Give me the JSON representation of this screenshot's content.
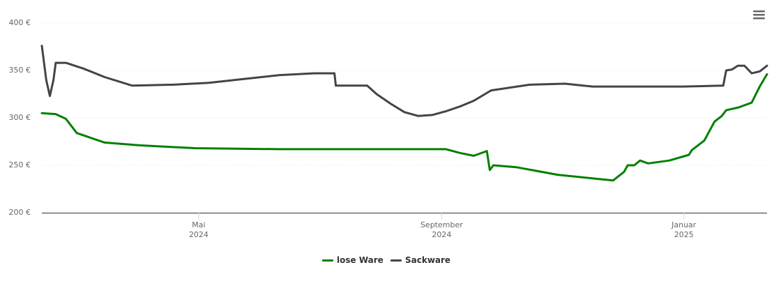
{
  "chart_data": {
    "type": "line",
    "series": [
      {
        "name": "lose Ware",
        "color": "#008000",
        "x": [
          2024.12,
          2024.139,
          2024.153,
          2024.168,
          2024.206,
          2024.254,
          2024.33,
          2024.445,
          2024.674,
          2024.693,
          2024.712,
          2024.73,
          2024.734,
          2024.739,
          2024.77,
          2024.827,
          2024.903,
          2024.918,
          2024.923,
          2024.932,
          2024.94,
          2024.951,
          2024.98,
          2025.007,
          2025.011,
          2025.028,
          2025.042,
          2025.052,
          2025.058,
          2025.075,
          2025.093,
          2025.104,
          2025.114
        ],
        "values": [
          305,
          304,
          299,
          284,
          274,
          271,
          268,
          267,
          267,
          263,
          260,
          265,
          245,
          250,
          248,
          240,
          234,
          243,
          250,
          250,
          255,
          252,
          255,
          261,
          266,
          276,
          296,
          302,
          308,
          311,
          316,
          333,
          346
        ]
      },
      {
        "name": "Sackware",
        "color": "#434348",
        "x": [
          2024.12,
          2024.126,
          2024.131,
          2024.136,
          2024.139,
          2024.153,
          2024.177,
          2024.206,
          2024.244,
          2024.301,
          2024.349,
          2024.397,
          2024.445,
          2024.493,
          2024.521,
          2024.523,
          2024.566,
          2024.579,
          2024.598,
          2024.617,
          2024.636,
          2024.655,
          2024.674,
          2024.693,
          2024.712,
          2024.736,
          2024.789,
          2024.837,
          2024.875,
          2024.923,
          2024.999,
          2025.054,
          2025.058,
          2025.066,
          2025.074,
          2025.083,
          2025.093,
          2025.104,
          2025.114
        ],
        "values": [
          376,
          340,
          323,
          340,
          358,
          358,
          352,
          343,
          334,
          335,
          337,
          341,
          345,
          347,
          347,
          334,
          334,
          325,
          315,
          306,
          302,
          303,
          307,
          312,
          318,
          329,
          335,
          336,
          333,
          333,
          333,
          334,
          350,
          351,
          355,
          355,
          347,
          349,
          355
        ]
      }
    ],
    "xlim": [
      2024.12,
      2025.114
    ],
    "xticks": [
      {
        "value": 2024.335,
        "label": "Mai\n2024"
      },
      {
        "value": 2024.668,
        "label": "September\n2024"
      },
      {
        "value": 2025.0,
        "label": "Januar\n2025"
      }
    ],
    "ylim": [
      200,
      400
    ],
    "yticks": [
      {
        "value": 200,
        "label": "200 €"
      },
      {
        "value": 250,
        "label": "250 €"
      },
      {
        "value": 300,
        "label": "300 €"
      },
      {
        "value": 350,
        "label": "350 €"
      },
      {
        "value": 400,
        "label": "400 €"
      }
    ],
    "grid": true
  }
}
